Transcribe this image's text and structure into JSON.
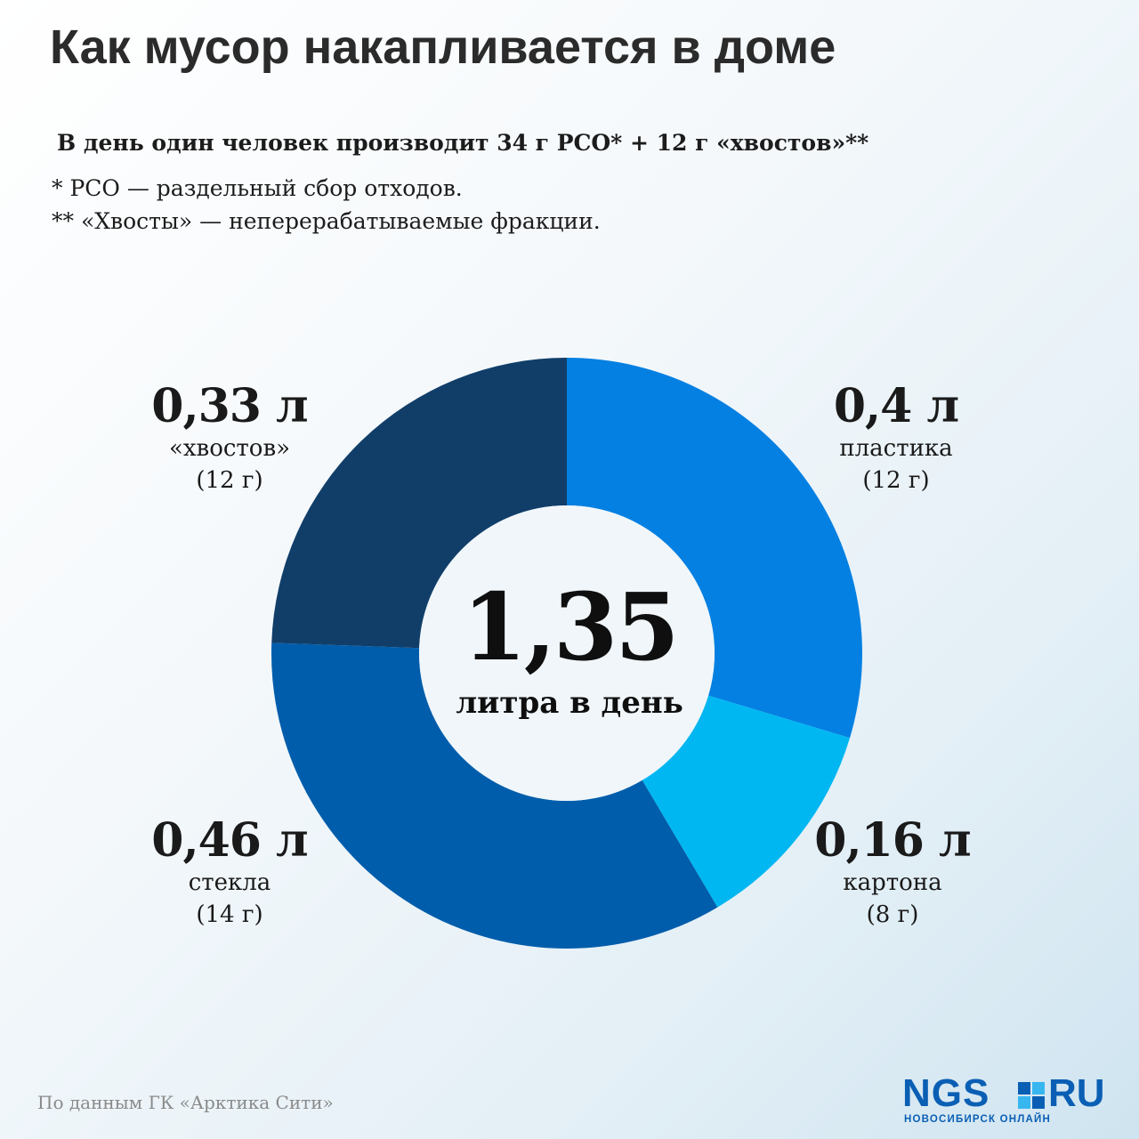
{
  "title": "Как мусор накапливается в доме",
  "subtitle": "В день один человек производит 34 г РСО* + 12 г «хвостов»**",
  "notes": [
    "* РСО — раздельный сбор отходов.",
    "** «Хвосты» — неперерабатываемые фракции."
  ],
  "chart_data": {
    "type": "pie",
    "variant": "donut",
    "unit": "л",
    "total": 1.35,
    "center_value": "1,35",
    "center_label": "литра в день",
    "slices": [
      {
        "label": "пластика",
        "value": 0.4,
        "value_text": "0,4 л",
        "mass": "(12 г)",
        "color": "#0480e2"
      },
      {
        "label": "картона",
        "value": 0.16,
        "value_text": "0,16 л",
        "mass": "(8 г)",
        "color": "#00b7f1"
      },
      {
        "label": "стекла",
        "value": 0.46,
        "value_text": "0,46 л",
        "mass": "(14 г)",
        "color": "#005dab"
      },
      {
        "label": "«хвостов»",
        "value": 0.33,
        "value_text": "0,33 л",
        "mass": "(12 г)",
        "color": "#113e69"
      }
    ]
  },
  "source": "По данным ГК «Арктика Сити»",
  "logo": {
    "left_text": "NGS",
    "right_text": "RU",
    "subtitle": "НОВОСИБИРСК ОНЛАЙН"
  }
}
